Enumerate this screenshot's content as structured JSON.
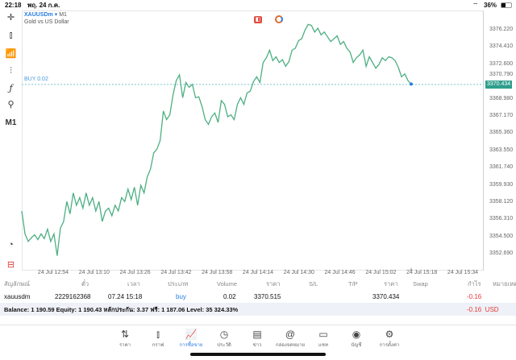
{
  "status": {
    "time": "22:18",
    "date": "พฤ. 24 ก.ค.",
    "battery": "36%"
  },
  "chart": {
    "symbol": "XAUUSDm",
    "timeframe": "M1",
    "description": "Gold vs US Dollar",
    "order_line_label": "BUY 0.02",
    "current_price": "3370.434",
    "tf_button": "M1"
  },
  "chart_data": {
    "type": "line",
    "title": "XAUUSDm M1",
    "color": "#4caf82",
    "ylim": [
      3351.9,
      3379.2
    ],
    "price_ticks": [
      "3376.220",
      "3374.410",
      "3372.600",
      "3370.790",
      "3368.980",
      "3367.170",
      "3365.360",
      "3363.550",
      "3361.740",
      "3359.930",
      "3358.120",
      "3356.310",
      "3354.500",
      "3352.690"
    ],
    "time_ticks": [
      "24 Jul 12:54",
      "24 Jul 13:10",
      "24 Jul 13:26",
      "24 Jul 13:42",
      "24 Jul 13:58",
      "24 Jul 14:14",
      "24 Jul 14:30",
      "24 Jul 14:46",
      "24 Jul 15:02",
      "24 Jul 15:18",
      "24 Jul 15:34"
    ],
    "buy_price": 3370.515,
    "values": [
      3357.1,
      3354.7,
      3353.9,
      3354.3,
      3354.6,
      3354.1,
      3354.7,
      3354.2,
      3355.2,
      3353.9,
      3354.7,
      3352.4,
      3355.3,
      3356.0,
      3358.1,
      3356.8,
      3359.0,
      3357.7,
      3358.5,
      3357.4,
      3359.0,
      3357.7,
      3358.5,
      3357.1,
      3358.1,
      3356.0,
      3357.1,
      3357.4,
      3356.6,
      3357.7,
      3357.1,
      3358.5,
      3358.1,
      3359.4,
      3358.3,
      3359.6,
      3357.7,
      3359.8,
      3359.0,
      3360.7,
      3361.5,
      3363.2,
      3363.6,
      3364.5,
      3367.6,
      3366.7,
      3367.2,
      3369.3,
      3370.8,
      3371.4,
      3369.0,
      3370.6,
      3370.1,
      3370.4,
      3369.0,
      3369.1,
      3368.1,
      3366.7,
      3366.2,
      3367.0,
      3367.4,
      3366.4,
      3368.7,
      3368.3,
      3367.0,
      3367.2,
      3366.7,
      3368.3,
      3369.0,
      3368.3,
      3369.5,
      3369.7,
      3370.7,
      3371.2,
      3370.6,
      3372.7,
      3373.2,
      3374.0,
      3372.9,
      3373.3,
      3372.7,
      3373.0,
      3372.3,
      3372.8,
      3374.0,
      3374.2,
      3375.0,
      3375.2,
      3376.1,
      3376.7,
      3376.6,
      3375.9,
      3376.3,
      3375.6,
      3375.9,
      3375.4,
      3374.9,
      3375.2,
      3375.5,
      3374.6,
      3374.9,
      3374.2,
      3373.8,
      3372.7,
      3373.2,
      3373.5,
      3374.0,
      3372.3,
      3373.3,
      3372.7,
      3372.1,
      3372.5,
      3373.2,
      3372.9,
      3373.3,
      3373.2,
      3372.9,
      3372.2,
      3371.2,
      3371.5,
      3370.8,
      3370.434
    ]
  },
  "table": {
    "headers": [
      "สัญลักษณ์",
      "ตั๋ว",
      "เวลา",
      "ประเภท",
      "Volume",
      "ราคา",
      "S/L",
      "T/P",
      "ราคา",
      "Swap",
      "กำไร",
      "หมายเหตุ"
    ],
    "row": {
      "symbol": "xauusdm",
      "ticket": "2229162368",
      "time": "07.24 15:18",
      "type": "buy",
      "volume": "0.02",
      "open_price": "3370.515",
      "current_price": "3370.434",
      "profit": "-0.16"
    },
    "summary": "Balance: 1 190.59 Equity: 1 190.43 หลักประกัน: 3.37 ฟรี: 1 187.06 Level: 35 324.33%",
    "summary_profit": "-0.16  USD"
  },
  "tabs": [
    {
      "label": "ราคา",
      "icon": "⇅"
    },
    {
      "label": "กราฟ",
      "icon": "⫾"
    },
    {
      "label": "การซื้อขาย",
      "icon": "📈"
    },
    {
      "label": "ประวัติ",
      "icon": "◷"
    },
    {
      "label": "ข่าว",
      "icon": "▤"
    },
    {
      "label": "กล่องจดหมาย",
      "icon": "@"
    },
    {
      "label": "แชท",
      "icon": "▭"
    },
    {
      "label": "บัญชี",
      "icon": "◉"
    },
    {
      "label": "การตั้งค่า",
      "icon": "⚙"
    }
  ]
}
